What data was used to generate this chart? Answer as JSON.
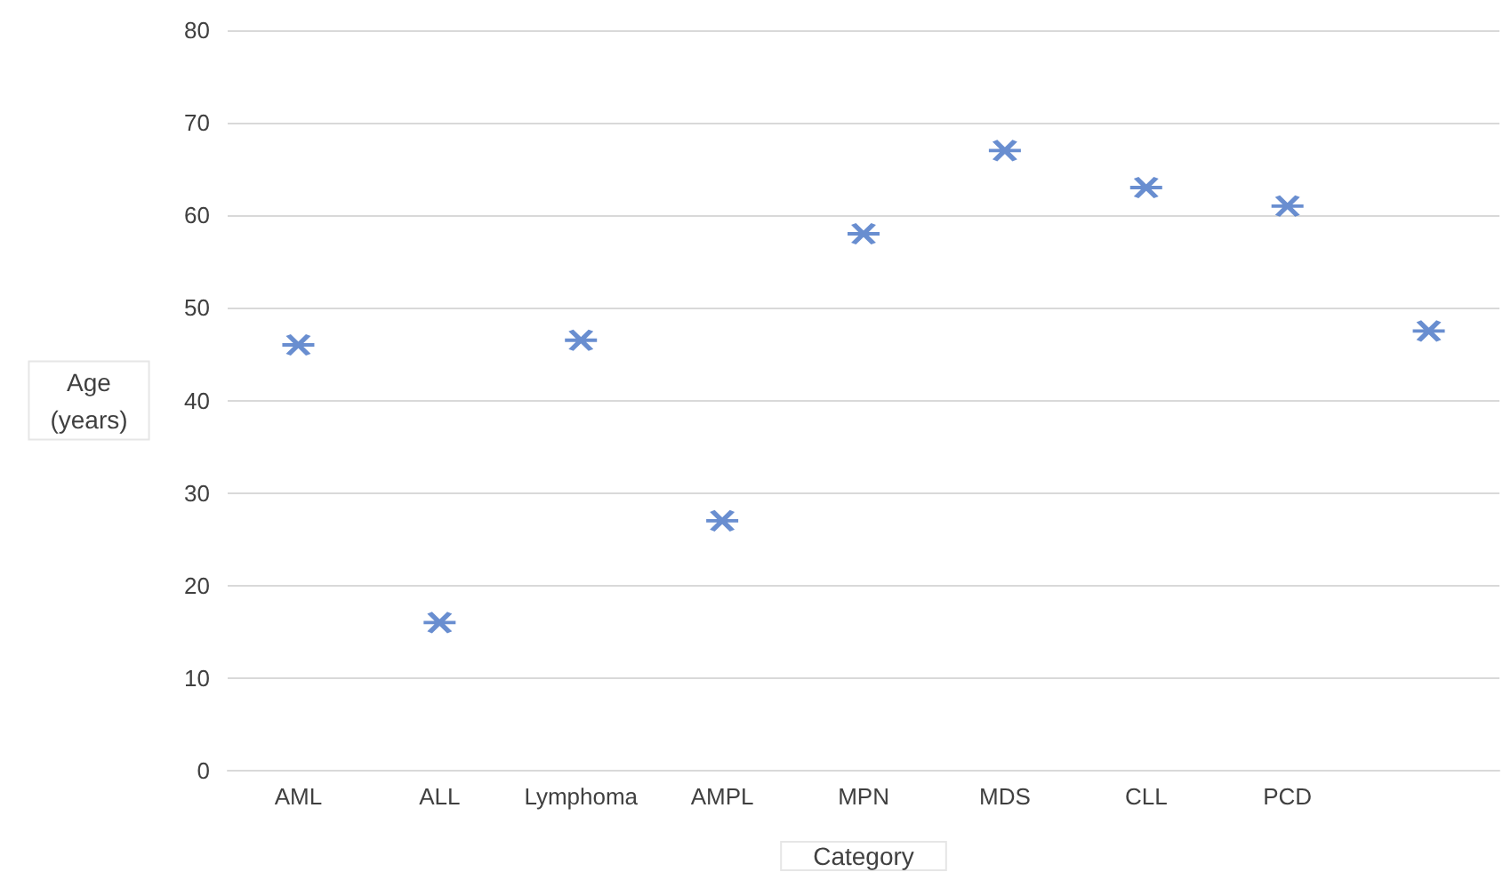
{
  "chart_data": {
    "type": "scatter",
    "xlabel": "Category",
    "ylabel": "Age\n(years)",
    "categories": [
      "AML",
      "ALL",
      "Lymphoma",
      "AMPL",
      "MPN",
      "MDS",
      "CLL",
      "PCD",
      null
    ],
    "series": [
      {
        "color": "#4472c4",
        "values": [
          46,
          16,
          46.5,
          27,
          58,
          67,
          63,
          61,
          47.5
        ]
      }
    ],
    "ylim": [
      0,
      80
    ],
    "yticks": [
      0,
      10,
      20,
      30,
      40,
      50,
      60,
      70,
      80
    ],
    "grid": "y",
    "marker": "cross"
  }
}
